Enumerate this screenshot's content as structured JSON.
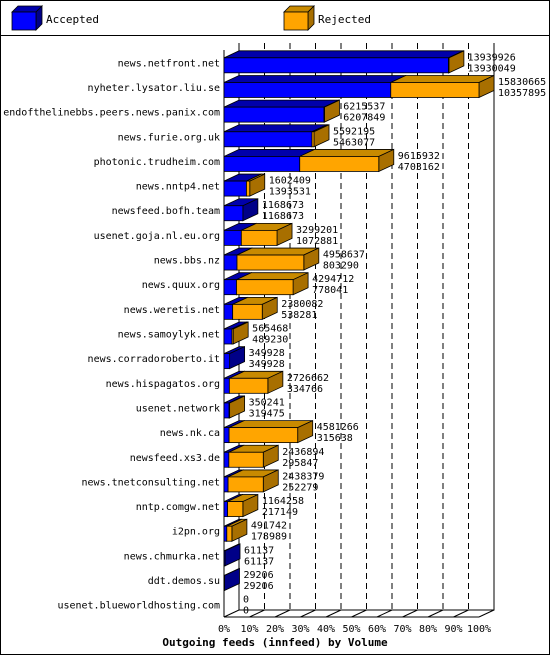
{
  "legend": {
    "accepted_label": "Accepted",
    "rejected_label": "Rejected",
    "accepted_color": "#0000ff",
    "rejected_color": "#ffa500"
  },
  "chart_data": {
    "type": "bar",
    "orientation": "horizontal",
    "stacked": true,
    "title": "Outgoing feeds (innfeed) by Volume",
    "xlabel": "",
    "ylabel": "",
    "xlim": [
      0,
      100
    ],
    "x_ticks": [
      "0%",
      "10%",
      "20%",
      "30%",
      "40%",
      "50%",
      "60%",
      "70%",
      "80%",
      "90%",
      "100%"
    ],
    "grid": true,
    "legend_position": "top",
    "colors": {
      "accepted": "#0000ff",
      "rejected": "#ffa500"
    },
    "rows": [
      {
        "host": "news.netfront.net",
        "total": 13939926,
        "accepted": 13930049,
        "pct_accepted": 88.0,
        "pct_total": 88.06
      },
      {
        "host": "nyheter.lysator.liu.se",
        "total": 15830665,
        "accepted": 10357895,
        "pct_accepted": 65.4,
        "pct_total": 100.0
      },
      {
        "host": "endofthelinebbs.peers.news.panix.com",
        "total": 6215537,
        "accepted": 6207849,
        "pct_accepted": 39.2,
        "pct_total": 39.3
      },
      {
        "host": "news.furie.org.uk",
        "total": 5592195,
        "accepted": 5463077,
        "pct_accepted": 34.5,
        "pct_total": 35.3
      },
      {
        "host": "photonic.trudheim.com",
        "total": 9615932,
        "accepted": 4703162,
        "pct_accepted": 29.7,
        "pct_total": 60.7
      },
      {
        "host": "news.nntp4.net",
        "total": 1602409,
        "accepted": 1393531,
        "pct_accepted": 8.8,
        "pct_total": 10.1
      },
      {
        "host": "newsfeed.bofh.team",
        "total": 1168673,
        "accepted": 1168673,
        "pct_accepted": 7.4,
        "pct_total": 7.4
      },
      {
        "host": "usenet.goja.nl.eu.org",
        "total": 3299201,
        "accepted": 1072881,
        "pct_accepted": 6.8,
        "pct_total": 20.8
      },
      {
        "host": "news.bbs.nz",
        "total": 4958637,
        "accepted": 803290,
        "pct_accepted": 5.1,
        "pct_total": 31.3
      },
      {
        "host": "news.quux.org",
        "total": 4294712,
        "accepted": 778041,
        "pct_accepted": 4.9,
        "pct_total": 27.1
      },
      {
        "host": "news.weretis.net",
        "total": 2380082,
        "accepted": 538281,
        "pct_accepted": 3.4,
        "pct_total": 15.0
      },
      {
        "host": "news.samoylyk.net",
        "total": 565468,
        "accepted": 489230,
        "pct_accepted": 3.1,
        "pct_total": 3.6
      },
      {
        "host": "news.corradoroberto.it",
        "total": 349928,
        "accepted": 349928,
        "pct_accepted": 2.2,
        "pct_total": 2.2
      },
      {
        "host": "news.hispagatos.org",
        "total": 2726662,
        "accepted": 334766,
        "pct_accepted": 2.1,
        "pct_total": 17.2
      },
      {
        "host": "usenet.network",
        "total": 350241,
        "accepted": 319475,
        "pct_accepted": 2.0,
        "pct_total": 2.2
      },
      {
        "host": "news.nk.ca",
        "total": 4581266,
        "accepted": 315638,
        "pct_accepted": 2.0,
        "pct_total": 28.9
      },
      {
        "host": "newsfeed.xs3.de",
        "total": 2436894,
        "accepted": 295847,
        "pct_accepted": 1.9,
        "pct_total": 15.4
      },
      {
        "host": "news.tnetconsulting.net",
        "total": 2438379,
        "accepted": 252279,
        "pct_accepted": 1.6,
        "pct_total": 15.4
      },
      {
        "host": "nntp.comgw.net",
        "total": 1164258,
        "accepted": 217149,
        "pct_accepted": 1.4,
        "pct_total": 7.4
      },
      {
        "host": "i2pn.org",
        "total": 491742,
        "accepted": 178989,
        "pct_accepted": 1.1,
        "pct_total": 3.1
      },
      {
        "host": "news.chmurka.net",
        "total": 61137,
        "accepted": 61137,
        "pct_accepted": 0.4,
        "pct_total": 0.4
      },
      {
        "host": "ddt.demos.su",
        "total": 29206,
        "accepted": 29206,
        "pct_accepted": 0.2,
        "pct_total": 0.2
      },
      {
        "host": "usenet.blueworldhosting.com",
        "total": 0,
        "accepted": 0,
        "pct_accepted": 0,
        "pct_total": 0
      }
    ]
  }
}
